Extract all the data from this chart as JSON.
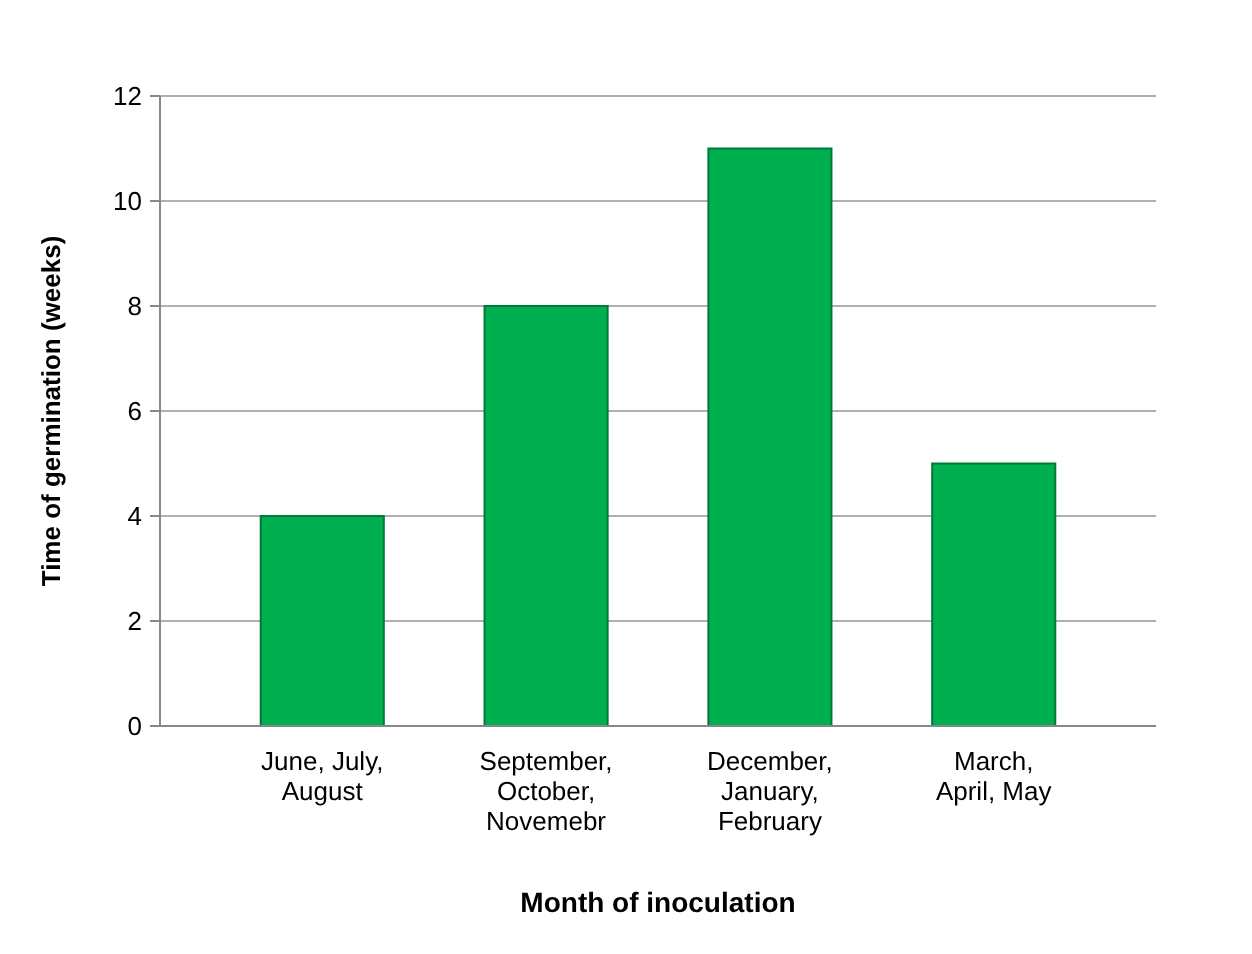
{
  "chart_data": {
    "type": "bar",
    "xlabel": "Month of inoculation",
    "ylabel": "Time of germination (weeks)",
    "categories": [
      "June, July, August",
      "September, October, Novemebr",
      "December, January, February",
      "March, April, May"
    ],
    "values": [
      4,
      8,
      11,
      5
    ],
    "color": "#00b050",
    "ylim": [
      0,
      12
    ],
    "yticks": [
      0,
      2,
      4,
      6,
      8,
      10,
      12
    ],
    "grid": "y"
  }
}
